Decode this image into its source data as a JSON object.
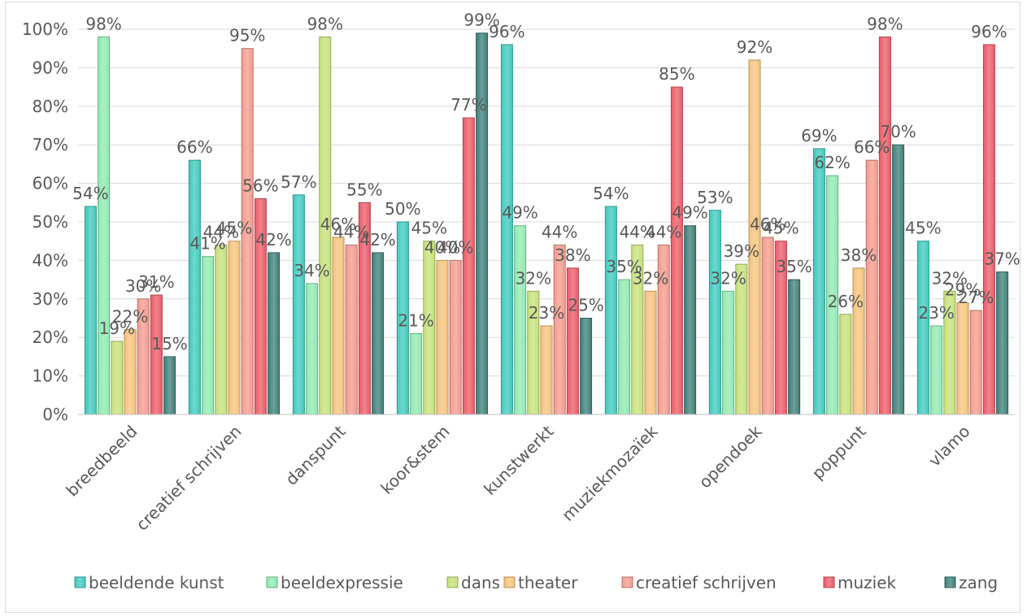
{
  "chart_data": {
    "type": "bar",
    "title": "",
    "xlabel": "",
    "ylabel": "",
    "ylim": [
      0,
      1
    ],
    "y_ticks": [
      0,
      0.1,
      0.2,
      0.3,
      0.4,
      0.5,
      0.6,
      0.7,
      0.8,
      0.9,
      1.0
    ],
    "y_tick_labels": [
      "0%",
      "10%",
      "20%",
      "30%",
      "40%",
      "50%",
      "60%",
      "70%",
      "80%",
      "90%",
      "100%"
    ],
    "categories": [
      "breedbeeld",
      "creatief schrijven",
      "danspunt",
      "koor&stem",
      "kunstwerkt",
      "muziekmozaïek",
      "opendoek",
      "poppunt",
      "vlamo"
    ],
    "legend_position": "bottom",
    "grid": true,
    "series": [
      {
        "name": "beeldende kunst",
        "color": "#3fc9bd",
        "values": [
          54,
          66,
          57,
          50,
          96,
          54,
          53,
          69,
          45
        ],
        "labels": [
          "54%",
          "66%",
          "57%",
          "50%",
          "96%",
          "54%",
          "53%",
          "69%",
          "45%"
        ]
      },
      {
        "name": "beeldexpressie",
        "color": "#8ee9b0",
        "values": [
          98,
          41,
          34,
          21,
          49,
          35,
          32,
          62,
          23
        ],
        "labels": [
          "98%",
          "41%",
          "34%",
          "21%",
          "49%",
          "35%",
          "32%",
          "62%",
          "23%"
        ]
      },
      {
        "name": "dans",
        "color": "#c6e07a",
        "values": [
          19,
          44,
          98,
          45,
          32,
          44,
          39,
          26,
          32
        ],
        "labels": [
          "19%",
          "44%",
          "98%",
          "45%",
          "32%",
          "44%",
          "39%",
          "26%",
          "32%"
        ]
      },
      {
        "name": "theater",
        "color": "#f5c27a",
        "values": [
          22,
          45,
          46,
          40,
          23,
          32,
          92,
          38,
          29
        ],
        "labels": [
          "22%",
          "45%",
          "46%",
          "40%",
          "23%",
          "32%",
          "92%",
          "38%",
          "29%"
        ]
      },
      {
        "name": "creatief schrijven",
        "color": "#f39a8c",
        "values": [
          30,
          95,
          44,
          40,
          44,
          44,
          46,
          66,
          27
        ],
        "labels": [
          "30%",
          "95%",
          "44%",
          "40%",
          "44%",
          "44%",
          "46%",
          "66%",
          "27%"
        ]
      },
      {
        "name": "muziek",
        "color": "#ea5b67",
        "values": [
          31,
          56,
          55,
          77,
          38,
          85,
          45,
          98,
          96
        ],
        "labels": [
          "31%",
          "56%",
          "55%",
          "77%",
          "38%",
          "85%",
          "45%",
          "98%",
          "96%"
        ]
      },
      {
        "name": "zang",
        "color": "#3d7f78",
        "values": [
          15,
          42,
          42,
          99,
          25,
          49,
          35,
          70,
          37
        ],
        "labels": [
          "15%",
          "42%",
          "42%",
          "99%",
          "25%",
          "49%",
          "35%",
          "70%",
          "37%"
        ]
      }
    ]
  }
}
